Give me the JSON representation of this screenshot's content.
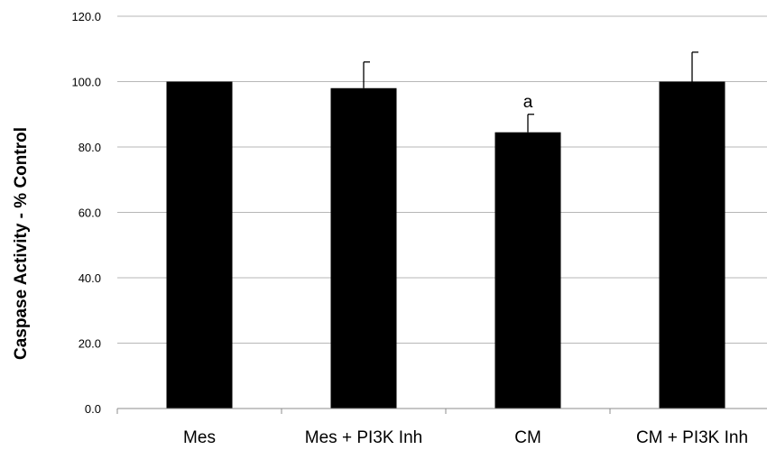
{
  "chart_data": {
    "type": "bar",
    "title": "",
    "xlabel": "",
    "ylabel": "Caspase Activity - % Control",
    "ylim": [
      0,
      120
    ],
    "yticks": [
      "0.0",
      "20.0",
      "40.0",
      "60.0",
      "80.0",
      "100.0",
      "120.0"
    ],
    "ytick_values": [
      0,
      20,
      40,
      60,
      80,
      100,
      120
    ],
    "categories": [
      "Mes",
      "Mes + PI3K Inh",
      "CM",
      "CM + PI3K Inh"
    ],
    "values": [
      100,
      98,
      84.5,
      100
    ],
    "errors": [
      0,
      8,
      5.5,
      9
    ],
    "annotations": [
      "",
      "",
      "a",
      ""
    ],
    "grid": true,
    "bar_color": "#000000",
    "grid_color": "#b7b7b7"
  }
}
